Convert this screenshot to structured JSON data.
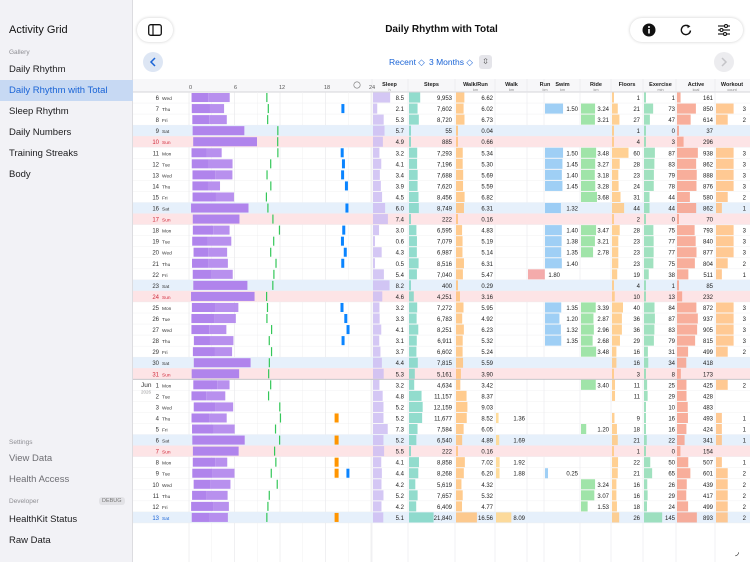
{
  "sidebar": {
    "title": "Activity Grid",
    "gallery_label": "Gallery",
    "gallery_items": [
      "Daily Rhythm",
      "Daily Rhythm with Total",
      "Sleep Rhythm",
      "Daily Numbers",
      "Training Streaks",
      "Body"
    ],
    "settings_label": "Settings",
    "settings_items": [
      "View Data",
      "Health Access"
    ],
    "developer_label": "Developer",
    "debug_badge": "DEBUG",
    "developer_items": [
      "HealthKit Status",
      "Raw Data"
    ]
  },
  "toolbar": {
    "title": "Daily Rhythm with Total",
    "icons": [
      "sidebar-icon",
      "info-icon",
      "refresh-icon",
      "sliders-icon"
    ]
  },
  "filters": {
    "range": "Recent ◇",
    "months": "3 Months ◇"
  },
  "columns": [
    {
      "key": "sleep",
      "title": "Sleep",
      "unit": "h"
    },
    {
      "key": "steps",
      "title": "Steps",
      "unit": ""
    },
    {
      "key": "walkrun",
      "title": "Walk/Run",
      "unit": "km"
    },
    {
      "key": "walk",
      "title": "Walk",
      "unit": "km"
    },
    {
      "key": "run",
      "title": "Run",
      "unit": "km"
    },
    {
      "key": "swim",
      "title": "Swim",
      "unit": "km"
    },
    {
      "key": "ride",
      "title": "Ride",
      "unit": "km"
    },
    {
      "key": "floors",
      "title": "Floors",
      "unit": ""
    },
    {
      "key": "exercise",
      "title": "Exercise",
      "unit": "min"
    },
    {
      "key": "active",
      "title": "Active",
      "unit": "kcal"
    },
    {
      "key": "workout",
      "title": "Workout",
      "unit": "count"
    }
  ],
  "hour_ticks": [
    "0",
    "6",
    "12",
    "18",
    "24"
  ],
  "month_label": {
    "month": "Jun",
    "year": "2026"
  },
  "colors": {
    "activity": "#b084ec",
    "walk": "#34c759",
    "swim": "#0a84ff",
    "ride": "#ff9500",
    "weekend": "#e6f0fb",
    "sunday": "#fde4e6",
    "selected": "#1a64d6"
  },
  "rows": [
    {
      "d": "6",
      "w": "Wed",
      "t": "",
      "sleep": "8.5",
      "steps": "9,953",
      "walkrun": "6.62",
      "walk": "",
      "run": "",
      "swim": "",
      "ride": "",
      "floors": "1",
      "exercise": "1",
      "active": "161",
      "workout": ""
    },
    {
      "d": "7",
      "w": "Thu",
      "t": "",
      "sleep": "2.1",
      "steps": "7,602",
      "walkrun": "6.02",
      "walk": "",
      "run": "",
      "swim": "1.50",
      "ride": "3.24",
      "floors": "21",
      "exercise": "73",
      "active": "850",
      "workout": "3"
    },
    {
      "d": "8",
      "w": "Fri",
      "t": "",
      "sleep": "5.3",
      "steps": "8,720",
      "walkrun": "6.73",
      "walk": "",
      "run": "",
      "swim": "",
      "ride": "3.21",
      "floors": "27",
      "exercise": "47",
      "active": "614",
      "workout": "2"
    },
    {
      "d": "9",
      "w": "Sat",
      "t": "sat",
      "sleep": "5.7",
      "steps": "55",
      "walkrun": "0.04",
      "walk": "",
      "run": "",
      "swim": "",
      "ride": "",
      "floors": "1",
      "exercise": "0",
      "active": "37",
      "workout": ""
    },
    {
      "d": "10",
      "w": "Sun",
      "t": "sun",
      "sleep": "4.9",
      "steps": "885",
      "walkrun": "0.66",
      "walk": "",
      "run": "",
      "swim": "",
      "ride": "",
      "floors": "4",
      "exercise": "3",
      "active": "296",
      "workout": ""
    },
    {
      "d": "11",
      "w": "Mon",
      "t": "",
      "sleep": "3.2",
      "steps": "7,293",
      "walkrun": "5.34",
      "walk": "",
      "run": "",
      "swim": "1.50",
      "ride": "3.48",
      "floors": "60",
      "exercise": "87",
      "active": "938",
      "workout": "3"
    },
    {
      "d": "12",
      "w": "Tue",
      "t": "",
      "sleep": "4.1",
      "steps": "7,196",
      "walkrun": "5.30",
      "walk": "",
      "run": "",
      "swim": "1.45",
      "ride": "3.27",
      "floors": "28",
      "exercise": "83",
      "active": "862",
      "workout": "3"
    },
    {
      "d": "13",
      "w": "Wed",
      "t": "",
      "sleep": "3.4",
      "steps": "7,688",
      "walkrun": "5.69",
      "walk": "",
      "run": "",
      "swim": "1.40",
      "ride": "3.18",
      "floors": "23",
      "exercise": "79",
      "active": "888",
      "workout": "3"
    },
    {
      "d": "14",
      "w": "Thu",
      "t": "",
      "sleep": "3.9",
      "steps": "7,620",
      "walkrun": "5.59",
      "walk": "",
      "run": "",
      "swim": "1.45",
      "ride": "3.28",
      "floors": "24",
      "exercise": "78",
      "active": "876",
      "workout": "3"
    },
    {
      "d": "15",
      "w": "Fri",
      "t": "",
      "sleep": "4.5",
      "steps": "8,456",
      "walkrun": "6.82",
      "walk": "",
      "run": "",
      "swim": "",
      "ride": "3.68",
      "floors": "31",
      "exercise": "44",
      "active": "580",
      "workout": "2"
    },
    {
      "d": "16",
      "w": "Sat",
      "t": "sat",
      "sleep": "6.0",
      "steps": "8,749",
      "walkrun": "6.31",
      "walk": "",
      "run": "",
      "swim": "1.32",
      "ride": "",
      "floors": "44",
      "exercise": "44",
      "active": "862",
      "workout": "1"
    },
    {
      "d": "17",
      "w": "Sun",
      "t": "sun",
      "sleep": "7.4",
      "steps": "222",
      "walkrun": "0.16",
      "walk": "",
      "run": "",
      "swim": "",
      "ride": "",
      "floors": "2",
      "exercise": "0",
      "active": "70",
      "workout": ""
    },
    {
      "d": "18",
      "w": "Mon",
      "t": "",
      "sleep": "3.0",
      "steps": "6,595",
      "walkrun": "4.83",
      "walk": "",
      "run": "",
      "swim": "1.40",
      "ride": "3.47",
      "floors": "28",
      "exercise": "75",
      "active": "793",
      "workout": "3"
    },
    {
      "d": "19",
      "w": "Tue",
      "t": "",
      "sleep": "0.6",
      "steps": "7,079",
      "walkrun": "5.19",
      "walk": "",
      "run": "",
      "swim": "1.38",
      "ride": "3.21",
      "floors": "23",
      "exercise": "77",
      "active": "840",
      "workout": "3"
    },
    {
      "d": "20",
      "w": "Wed",
      "t": "",
      "sleep": "4.3",
      "steps": "6,987",
      "walkrun": "5.14",
      "walk": "",
      "run": "",
      "swim": "1.35",
      "ride": "2.78",
      "floors": "23",
      "exercise": "77",
      "active": "877",
      "workout": "3"
    },
    {
      "d": "21",
      "w": "Thu",
      "t": "",
      "sleep": "0.5",
      "steps": "8,516",
      "walkrun": "6.31",
      "walk": "",
      "run": "",
      "swim": "1.40",
      "ride": "",
      "floors": "23",
      "exercise": "75",
      "active": "804",
      "workout": "2"
    },
    {
      "d": "22",
      "w": "Fri",
      "t": "",
      "sleep": "5.4",
      "steps": "7,040",
      "walkrun": "5.47",
      "walk": "",
      "run": "1.80",
      "swim": "",
      "ride": "",
      "floors": "19",
      "exercise": "38",
      "active": "511",
      "workout": "1"
    },
    {
      "d": "23",
      "w": "Sat",
      "t": "sat",
      "sleep": "8.2",
      "steps": "400",
      "walkrun": "0.29",
      "walk": "",
      "run": "",
      "swim": "",
      "ride": "",
      "floors": "4",
      "exercise": "1",
      "active": "85",
      "workout": ""
    },
    {
      "d": "24",
      "w": "Sun",
      "t": "sun",
      "sleep": "4.6",
      "steps": "4,251",
      "walkrun": "3.16",
      "walk": "",
      "run": "",
      "swim": "",
      "ride": "",
      "floors": "10",
      "exercise": "13",
      "active": "232",
      "workout": ""
    },
    {
      "d": "25",
      "w": "Mon",
      "t": "",
      "sleep": "3.2",
      "steps": "7,272",
      "walkrun": "5.95",
      "walk": "",
      "run": "",
      "swim": "1.35",
      "ride": "3.39",
      "floors": "40",
      "exercise": "84",
      "active": "872",
      "workout": "3"
    },
    {
      "d": "26",
      "w": "Tue",
      "t": "",
      "sleep": "3.3",
      "steps": "6,783",
      "walkrun": "4.92",
      "walk": "",
      "run": "",
      "swim": "1.20",
      "ride": "2.87",
      "floors": "36",
      "exercise": "87",
      "active": "937",
      "workout": "3"
    },
    {
      "d": "27",
      "w": "Wed",
      "t": "",
      "sleep": "4.1",
      "steps": "8,251",
      "walkrun": "6.23",
      "walk": "",
      "run": "",
      "swim": "1.32",
      "ride": "2.96",
      "floors": "36",
      "exercise": "83",
      "active": "905",
      "workout": "3"
    },
    {
      "d": "28",
      "w": "Thu",
      "t": "",
      "sleep": "3.1",
      "steps": "6,911",
      "walkrun": "5.32",
      "walk": "",
      "run": "",
      "swim": "1.35",
      "ride": "2.68",
      "floors": "29",
      "exercise": "79",
      "active": "815",
      "workout": "3"
    },
    {
      "d": "29",
      "w": "Fri",
      "t": "",
      "sleep": "3.7",
      "steps": "6,602",
      "walkrun": "5.24",
      "walk": "",
      "run": "",
      "swim": "",
      "ride": "3.48",
      "floors": "16",
      "exercise": "31",
      "active": "499",
      "workout": "2"
    },
    {
      "d": "30",
      "w": "Sat",
      "t": "sat",
      "sleep": "4.4",
      "steps": "7,815",
      "walkrun": "5.59",
      "walk": "",
      "run": "",
      "swim": "",
      "ride": "",
      "floors": "16",
      "exercise": "34",
      "active": "418",
      "workout": ""
    },
    {
      "d": "31",
      "w": "Sun",
      "t": "sun",
      "sleep": "5.3",
      "steps": "5,161",
      "walkrun": "3.90",
      "walk": "",
      "run": "",
      "swim": "",
      "ride": "",
      "floors": "3",
      "exercise": "8",
      "active": "173",
      "workout": ""
    },
    {
      "d": "1",
      "w": "Mon",
      "t": "",
      "sleep": "3.2",
      "steps": "4,634",
      "walkrun": "3.42",
      "walk": "",
      "run": "",
      "swim": "",
      "ride": "3.40",
      "floors": "11",
      "exercise": "25",
      "active": "425",
      "workout": "2"
    },
    {
      "d": "2",
      "w": "Tue",
      "t": "",
      "sleep": "4.8",
      "steps": "11,157",
      "walkrun": "8.37",
      "walk": "",
      "run": "",
      "swim": "",
      "ride": "",
      "floors": "11",
      "exercise": "29",
      "active": "428",
      "workout": ""
    },
    {
      "d": "3",
      "w": "Wed",
      "t": "",
      "sleep": "5.2",
      "steps": "12,159",
      "walkrun": "9.03",
      "walk": "",
      "run": "",
      "swim": "",
      "ride": "",
      "floors": "",
      "exercise": "10",
      "active": "483",
      "workout": ""
    },
    {
      "d": "4",
      "w": "Thu",
      "t": "",
      "sleep": "5.2",
      "steps": "11,677",
      "walkrun": "8.52",
      "walk": "1.36",
      "run": "",
      "swim": "",
      "ride": "",
      "floors": "9",
      "exercise": "16",
      "active": "493",
      "workout": "1"
    },
    {
      "d": "5",
      "w": "Fri",
      "t": "",
      "sleep": "7.3",
      "steps": "7,584",
      "walkrun": "6.05",
      "walk": "",
      "run": "",
      "swim": "",
      "ride": "1.20",
      "floors": "18",
      "exercise": "16",
      "active": "424",
      "workout": "1"
    },
    {
      "d": "6",
      "w": "Sat",
      "t": "sat",
      "sleep": "5.2",
      "steps": "6,540",
      "walkrun": "4.89",
      "walk": "1.69",
      "run": "",
      "swim": "",
      "ride": "",
      "floors": "21",
      "exercise": "22",
      "active": "341",
      "workout": "1"
    },
    {
      "d": "7",
      "w": "Sun",
      "t": "sun",
      "sleep": "5.5",
      "steps": "222",
      "walkrun": "0.16",
      "walk": "",
      "run": "",
      "swim": "",
      "ride": "",
      "floors": "1",
      "exercise": "0",
      "active": "154",
      "workout": ""
    },
    {
      "d": "8",
      "w": "Mon",
      "t": "",
      "sleep": "4.1",
      "steps": "8,858",
      "walkrun": "7.02",
      "walk": "1.92",
      "run": "",
      "swim": "",
      "ride": "",
      "floors": "22",
      "exercise": "50",
      "active": "507",
      "workout": "1"
    },
    {
      "d": "9",
      "w": "Tue",
      "t": "",
      "sleep": "4.4",
      "steps": "8,268",
      "walkrun": "6.20",
      "walk": "1.88",
      "run": "",
      "swim": "0.25",
      "ride": "",
      "floors": "21",
      "exercise": "65",
      "active": "601",
      "workout": "2"
    },
    {
      "d": "10",
      "w": "Wed",
      "t": "",
      "sleep": "4.2",
      "steps": "5,619",
      "walkrun": "4.32",
      "walk": "",
      "run": "",
      "swim": "",
      "ride": "3.24",
      "floors": "16",
      "exercise": "26",
      "active": "439",
      "workout": "2"
    },
    {
      "d": "11",
      "w": "Thu",
      "t": "",
      "sleep": "5.2",
      "steps": "7,657",
      "walkrun": "5.32",
      "walk": "",
      "run": "",
      "swim": "",
      "ride": "3.07",
      "floors": "16",
      "exercise": "29",
      "active": "417",
      "workout": "2"
    },
    {
      "d": "12",
      "w": "Fri",
      "t": "",
      "sleep": "4.2",
      "steps": "6,409",
      "walkrun": "4.77",
      "walk": "",
      "run": "",
      "swim": "",
      "ride": "1.53",
      "floors": "18",
      "exercise": "24",
      "active": "499",
      "workout": "2"
    },
    {
      "d": "13",
      "w": "Sat",
      "t": "sel",
      "sleep": "5.1",
      "steps": "21,840",
      "walkrun": "16.56",
      "walk": "8.09",
      "run": "",
      "swim": "",
      "ride": "",
      "floors": "26",
      "exercise": "145",
      "active": "893",
      "workout": "2"
    }
  ]
}
